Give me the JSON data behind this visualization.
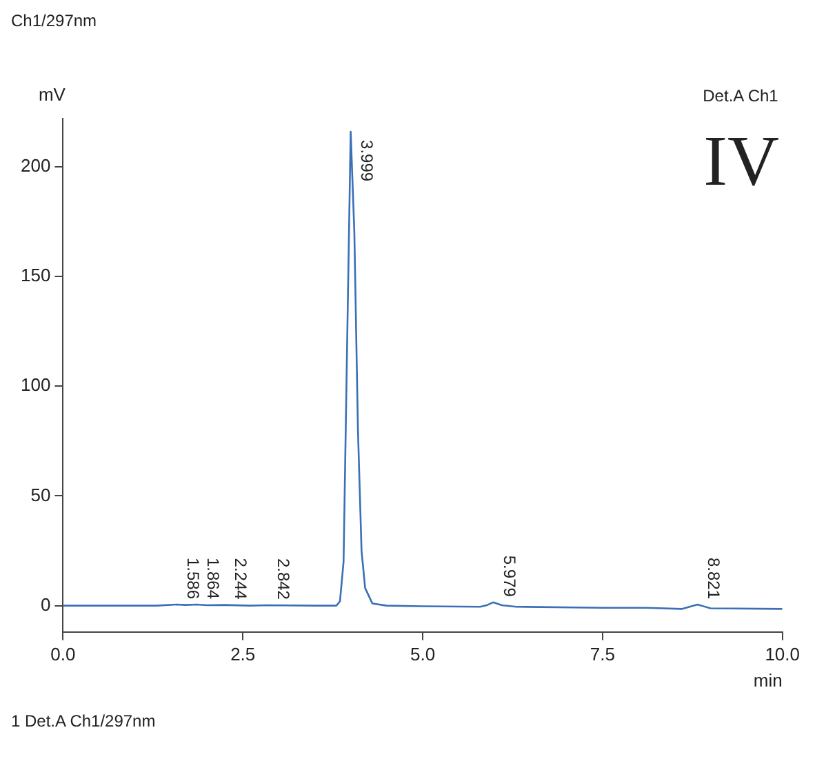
{
  "chart_data": {
    "type": "line",
    "xlabel": "min",
    "ylabel": "mV",
    "legend": "top right",
    "grid": false,
    "marker": "none",
    "line_style": "solid",
    "xlim": [
      0,
      10
    ],
    "ylim": [
      -12,
      222
    ],
    "xticks": [
      {
        "value": 0,
        "label": "0.0"
      },
      {
        "value": 2.5,
        "label": "2.5"
      },
      {
        "value": 5,
        "label": "5.0"
      },
      {
        "value": 7.5,
        "label": "7.5"
      },
      {
        "value": 10,
        "label": "10.0"
      }
    ],
    "yticks": [
      0,
      50,
      100,
      150,
      200
    ],
    "series": [
      {
        "name": "Det.A Ch1",
        "color": "#3b6fb6",
        "x": [
          0,
          1.3,
          1.586,
          1.7,
          1.864,
          2.0,
          2.244,
          2.6,
          2.842,
          3.5,
          3.8,
          3.85,
          3.9,
          3.95,
          3.999,
          4.05,
          4.1,
          4.15,
          4.2,
          4.3,
          4.5,
          5.0,
          5.8,
          5.9,
          5.979,
          6.1,
          6.3,
          7.5,
          8.1,
          8.6,
          8.821,
          9.0,
          10
        ],
        "values": [
          0,
          0,
          0.5,
          0.3,
          0.5,
          0.2,
          0.3,
          0,
          0.2,
          0,
          0,
          2,
          20,
          120,
          216,
          170,
          80,
          25,
          8,
          1,
          0,
          -0.3,
          -0.5,
          0.3,
          1.5,
          0.2,
          -0.5,
          -1,
          -1,
          -1.5,
          0.5,
          -1.2,
          -1.5
        ]
      }
    ],
    "annotations": [
      "Ch1/297nm",
      "IV",
      "1 Det.A Ch1/297nm",
      {
        "text": "1.586",
        "x": 1.586,
        "y": 0.5
      },
      {
        "text": "1.864",
        "x": 1.864,
        "y": 0.5
      },
      {
        "text": "2.244",
        "x": 2.244,
        "y": 0.3
      },
      {
        "text": "2.842",
        "x": 2.842,
        "y": 0.2
      },
      {
        "text": "3.999",
        "x": 3.999,
        "y": 216
      },
      {
        "text": "5.979",
        "x": 5.979,
        "y": 1.5
      },
      {
        "text": "8.821",
        "x": 8.821,
        "y": 0.5
      }
    ]
  }
}
